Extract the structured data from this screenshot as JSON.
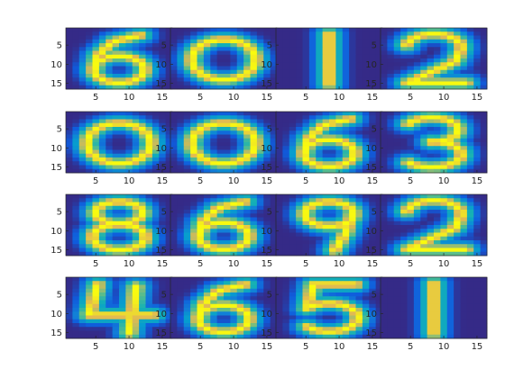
{
  "colors": {
    "colormap": "parula",
    "background": "#352a87",
    "mid": "#1fa1c6",
    "high": "#f9fb0e"
  },
  "chart_data": {
    "type": "heatmap",
    "grid": {
      "rows": 4,
      "cols": 4
    },
    "image_size": [
      16,
      16
    ],
    "x_ticks": [
      5,
      10,
      15
    ],
    "y_ticks": [
      5,
      10,
      15
    ],
    "xlim": [
      0.5,
      16.5
    ],
    "ylim": [
      0.5,
      16.5
    ],
    "y_direction": "reverse",
    "value_range": [
      0,
      1
    ],
    "panels": [
      {
        "digit": "6"
      },
      {
        "digit": "0"
      },
      {
        "digit": "1"
      },
      {
        "digit": "2"
      },
      {
        "digit": "0"
      },
      {
        "digit": "0"
      },
      {
        "digit": "6"
      },
      {
        "digit": "3"
      },
      {
        "digit": "8"
      },
      {
        "digit": "6"
      },
      {
        "digit": "9"
      },
      {
        "digit": "2"
      },
      {
        "digit": "4"
      },
      {
        "digit": "6"
      },
      {
        "digit": "5"
      },
      {
        "digit": "1"
      }
    ]
  }
}
